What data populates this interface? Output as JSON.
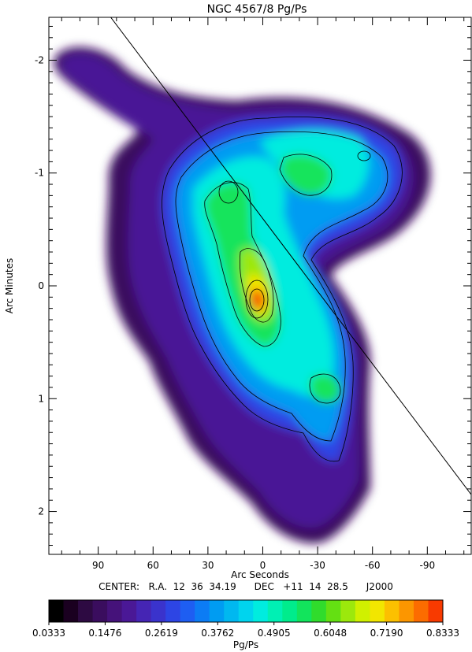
{
  "chart_data": {
    "type": "heatmap",
    "title": "NGC 4567/8 Pg/Ps",
    "xlabel": "Arc Seconds",
    "ylabel": "Arc Minutes",
    "x_ticks": [
      90,
      60,
      30,
      0,
      -30,
      -60,
      -90
    ],
    "x_tick_labels": [
      "90",
      "60",
      "30",
      "0",
      "-30",
      "-60",
      "-90"
    ],
    "y_ticks": [
      -2,
      -1,
      0,
      1,
      2
    ],
    "y_tick_labels": [
      "-2",
      "-1",
      "0",
      "1",
      "2"
    ],
    "xlim": [
      117,
      -114
    ],
    "ylim": [
      -2.38,
      2.38
    ],
    "x_reversed": true,
    "y_reversed": true,
    "grid": false,
    "center_line": "CENTER:   R.A.  12  36  34.19      DEC   +11  14  28.5      J2000",
    "colorbar": {
      "label": "Pg/Ps",
      "min": 0.0333,
      "max": 0.8333,
      "tick_labels": [
        "0.0333",
        "0.1476",
        "0.2619",
        "0.3762",
        "0.4905",
        "0.6048",
        "0.7190",
        "0.8333"
      ],
      "colors": [
        "#000000",
        "#1a0020",
        "#2d0a42",
        "#3a0d5e",
        "#45127a",
        "#4a1896",
        "#4525b4",
        "#3a33cc",
        "#2d45e4",
        "#1e5ef2",
        "#0c7cf4",
        "#009cf2",
        "#00b8f0",
        "#00d4ee",
        "#00ecdf",
        "#00f0b4",
        "#00ec8c",
        "#12e45c",
        "#30dc2c",
        "#64e012",
        "#9ce80c",
        "#d0f000",
        "#f2e600",
        "#fcc000",
        "#fc9600",
        "#fc6c00",
        "#f83a00"
      ]
    },
    "contour_levels": 22,
    "peak": {
      "x": 0,
      "y": 0.14,
      "value": 0.8333
    },
    "secondary_peaks": [
      {
        "x": 22,
        "y": -0.82,
        "value": 0.49
      },
      {
        "x": -15,
        "y": -1.0,
        "value": 0.49
      },
      {
        "x": -43,
        "y": -0.9,
        "value": 0.45
      },
      {
        "x": -35,
        "y": 0.95,
        "value": 0.49
      }
    ],
    "annotation_line": {
      "x1": 85,
      "y1": -2.42,
      "x2": -114,
      "y2": 1.85
    }
  }
}
